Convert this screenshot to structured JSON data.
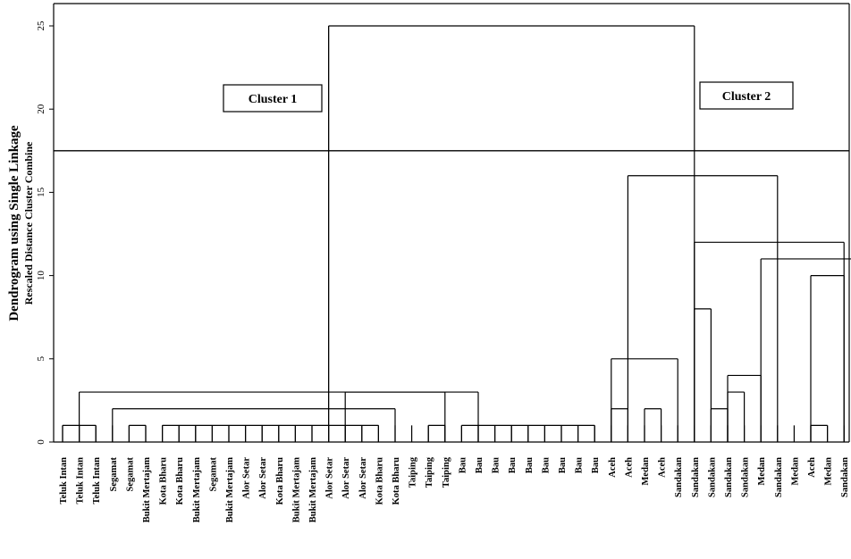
{
  "chart_data": {
    "type": "dendrogram",
    "title": "Dendrogram using Single Linkage",
    "ylabel": "Rescaled Distance Cluster Combine",
    "ylim": [
      0,
      25
    ],
    "yticks": [
      "0",
      "5",
      "10",
      "15",
      "20",
      "25"
    ],
    "cut_height": 17.5,
    "cluster_labels": [
      "Cluster 1",
      "Cluster 2"
    ],
    "leaves": [
      "Teluk Intan",
      "Teluk Intan",
      "Teluk Intan",
      "Segamat",
      "Segamat",
      "Bukit Mertajam",
      "Kota Bharu",
      "Kota Bharu",
      "Bukit Mertajam",
      "Segamat",
      "Bukit Mertajam",
      "Alor Setar",
      "Alor Setar",
      "Kota Bharu",
      "Bukit Mertajam",
      "Bukit Mertajam",
      "Alor Setar",
      "Alor Setar",
      "Alor Setar",
      "Kota Bharu",
      "Kota Bharu",
      "Taiping",
      "Taiping",
      "Taiping",
      "Bau",
      "Bau",
      "Bau",
      "Bau",
      "Bau",
      "Bau",
      "Bau",
      "Bau",
      "Bau",
      "Aceh",
      "Aceh",
      "Medan",
      "Aceh",
      "Sandakan",
      "Sandakan",
      "Sandakan",
      "Sandakan",
      "Sandakan",
      "Medan",
      "Sandakan",
      "Medan",
      "Aceh",
      "Medan",
      "Sandakan",
      "Sandakan"
    ],
    "merges": [
      {
        "left": [
          0,
          1,
          2
        ],
        "height": 1
      },
      {
        "left": [
          4,
          5
        ],
        "height": 1
      },
      {
        "left": [
          6,
          7,
          8,
          9,
          10,
          11,
          12,
          13,
          14,
          15,
          16,
          17,
          18,
          19
        ],
        "height": 1
      },
      {
        "left": [
          22,
          23
        ],
        "height": 1
      },
      {
        "left": [
          24,
          25,
          26,
          27,
          28,
          29,
          30,
          31,
          32
        ],
        "height": 1
      },
      {
        "left": [
          39,
          40
        ],
        "height": 2
      },
      {
        "left": [
          45,
          46
        ],
        "height": 1
      },
      {
        "left": [
          35,
          36
        ],
        "height": 2
      },
      {
        "left": [
          33,
          34
        ],
        "height": 2
      },
      {
        "left": [
          38,
          39
        ],
        "height": 8
      },
      {
        "left": [
          40,
          41
        ],
        "height": 3
      },
      {
        "left": [
          40,
          42
        ],
        "height": 4
      },
      {
        "left": [
          45,
          47
        ],
        "height": 10
      },
      {
        "left": [
          42,
          48
        ],
        "height": 11
      },
      {
        "left": [
          38,
          47
        ],
        "height": 12
      },
      {
        "left": [
          33,
          37
        ],
        "height": 5
      },
      {
        "left": [
          34,
          43
        ],
        "height": 16
      },
      {
        "left": [
          3,
          20
        ],
        "height": 2
      },
      {
        "left": [
          1,
          25
        ],
        "height": 3
      },
      {
        "left": [
          17,
          23
        ],
        "height": 3
      },
      {
        "left": [
          16,
          38
        ],
        "height": 25
      }
    ]
  }
}
